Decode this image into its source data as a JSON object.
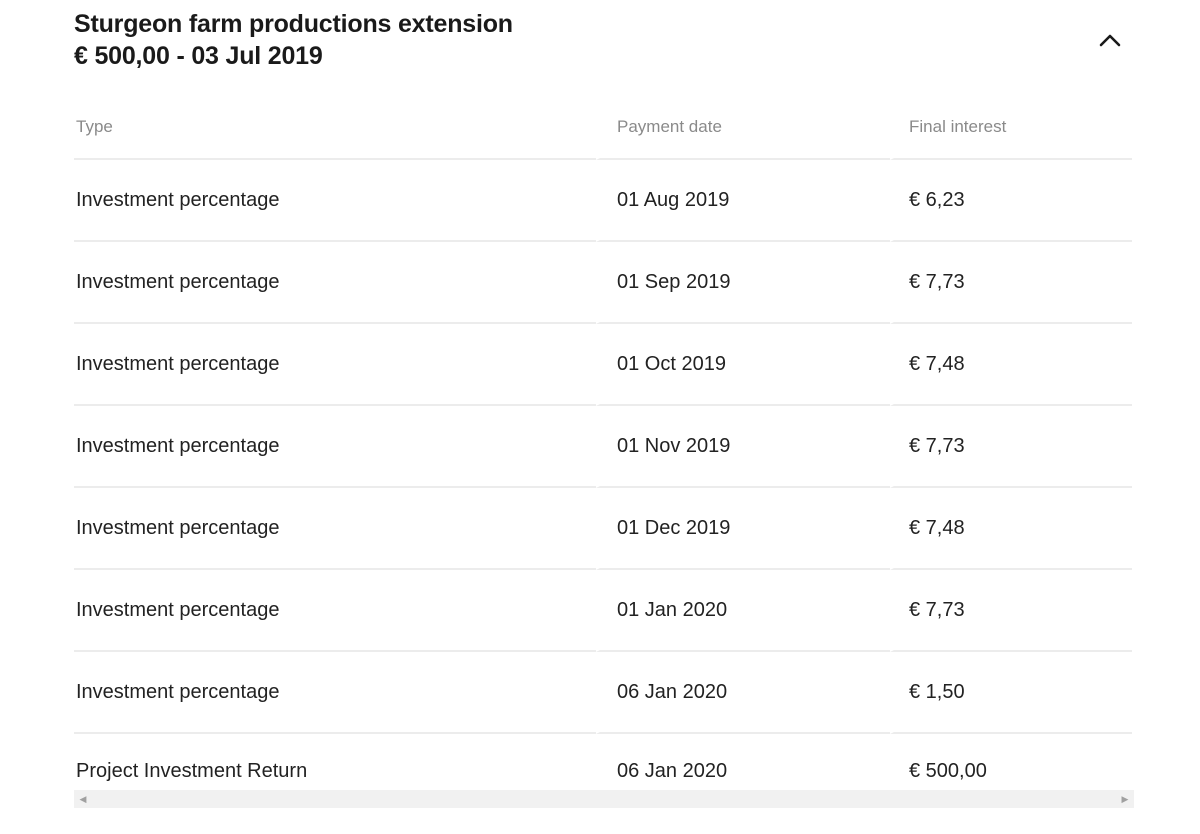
{
  "header": {
    "title": "Sturgeon farm productions extension",
    "subtitle": "€  500,00 - 03 Jul 2019",
    "collapse_icon": "chevron-up-icon"
  },
  "table": {
    "columns": [
      "Type",
      "Payment date",
      "Final interest"
    ],
    "rows": [
      {
        "type": "Investment percentage",
        "date": "01 Aug 2019",
        "interest": "€ 6,23"
      },
      {
        "type": "Investment percentage",
        "date": "01 Sep 2019",
        "interest": "€ 7,73"
      },
      {
        "type": "Investment percentage",
        "date": "01 Oct 2019",
        "interest": "€ 7,48"
      },
      {
        "type": "Investment percentage",
        "date": "01 Nov 2019",
        "interest": "€ 7,73"
      },
      {
        "type": "Investment percentage",
        "date": "01 Dec 2019",
        "interest": "€ 7,48"
      },
      {
        "type": "Investment percentage",
        "date": "01 Jan 2020",
        "interest": "€ 7,73"
      },
      {
        "type": "Investment percentage",
        "date": "06 Jan 2020",
        "interest": "€ 1,50"
      },
      {
        "type": "Project Investment Return",
        "date": "06 Jan 2020",
        "interest": "€ 500,00"
      }
    ]
  },
  "scrollbar": {
    "left_icon": "scroll-left-arrow-icon",
    "right_icon": "scroll-right-arrow-icon",
    "left_glyph": "◀",
    "right_glyph": "▶"
  }
}
